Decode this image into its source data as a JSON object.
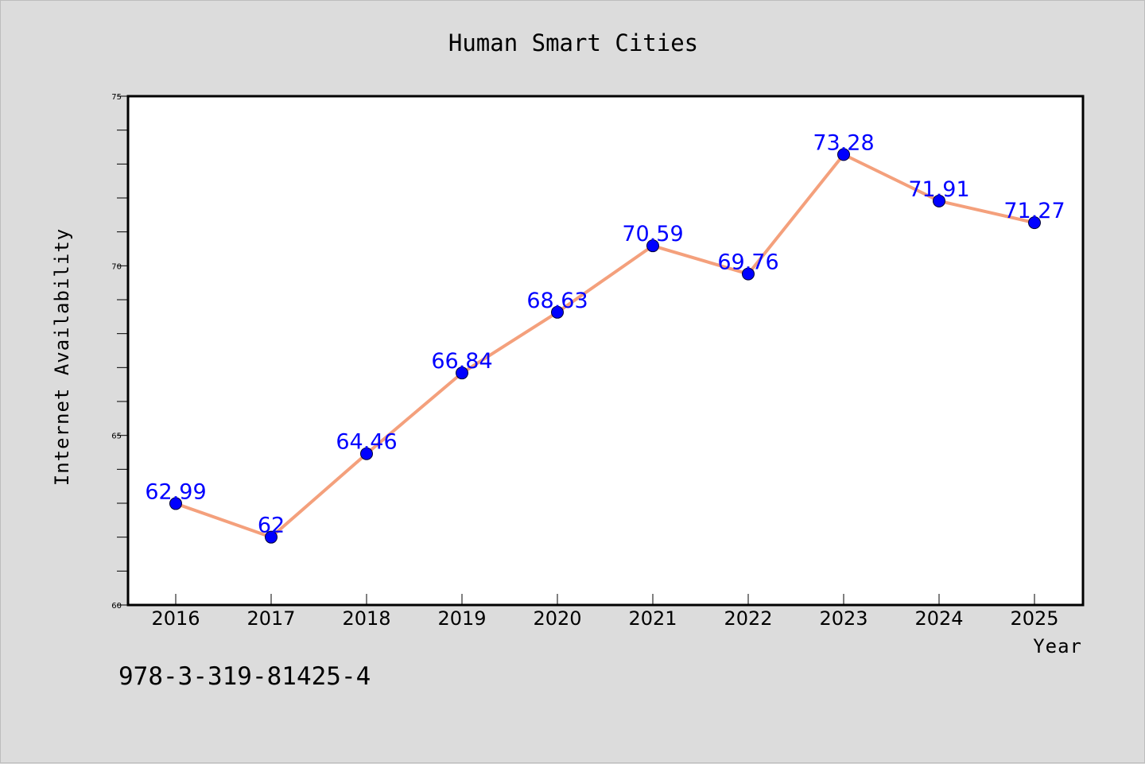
{
  "footnote": "978-3-319-81425-4",
  "chart_data": {
    "type": "line",
    "title": "Human Smart Cities",
    "xlabel": "Year",
    "ylabel": "Internet Availability",
    "x": [
      "2016",
      "2017",
      "2018",
      "2019",
      "2020",
      "2021",
      "2022",
      "2023",
      "2024",
      "2025"
    ],
    "series": [
      {
        "values": [
          62.99,
          62,
          64.46,
          66.84,
          68.63,
          70.59,
          69.76,
          73.28,
          71.91,
          71.27
        ],
        "data_labels": [
          "62.99",
          "62",
          "64.46",
          "66.84",
          "68.63",
          "70.59",
          "69.76",
          "73.28",
          "71.91",
          "71.27"
        ],
        "line_color": "#f4a07c",
        "marker_color": "#0000ff",
        "label_color": "#0000ff"
      }
    ],
    "ylim": [
      60,
      75
    ],
    "yticks": [
      "60",
      "65",
      "70",
      "75"
    ],
    "grid": false,
    "legend": "none"
  }
}
